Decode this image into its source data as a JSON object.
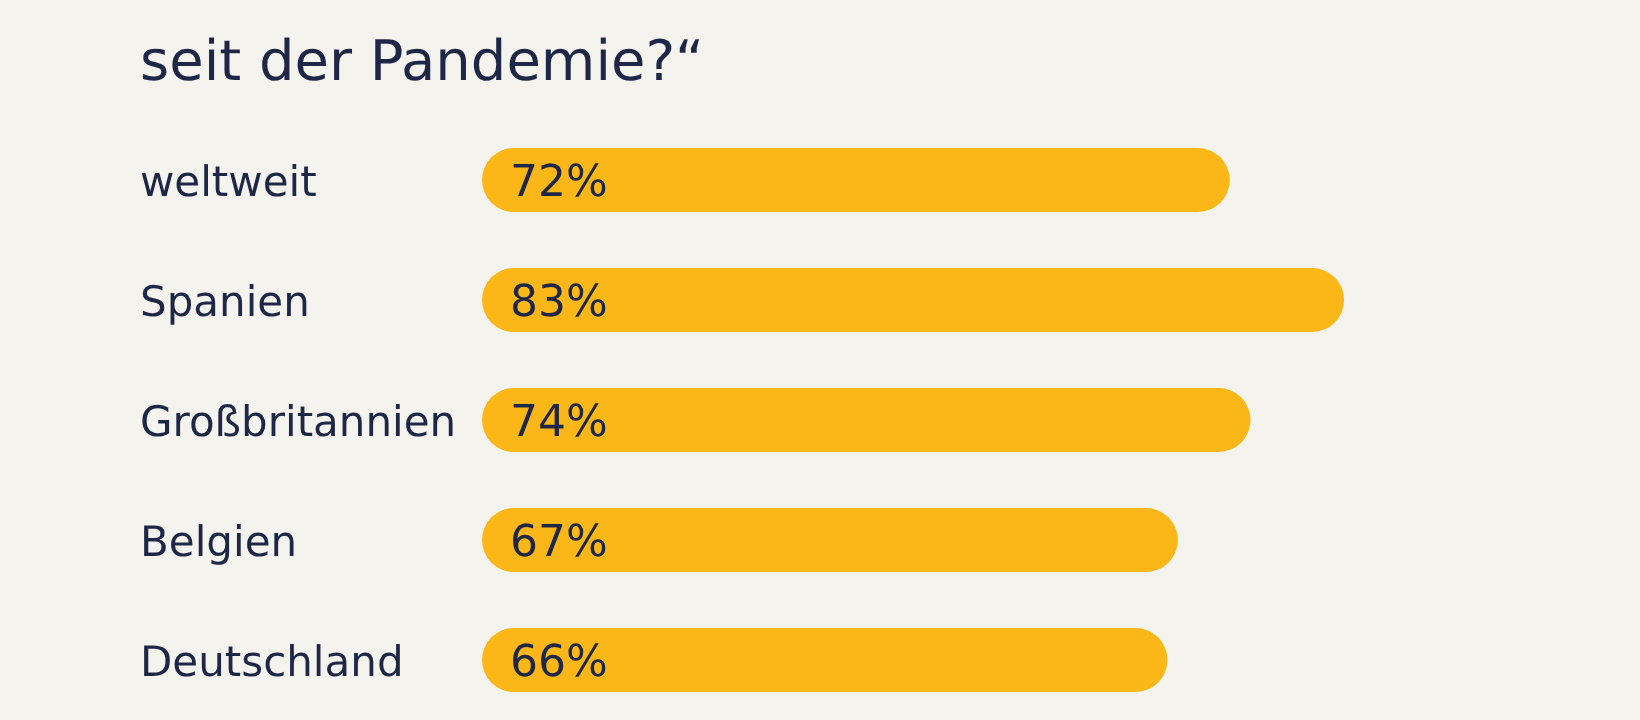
{
  "chart_data": {
    "type": "bar",
    "orientation": "horizontal",
    "title": "seit der Pandemie?“",
    "categories": [
      "weltweit",
      "Spanien",
      "Großbritannien",
      "Belgien",
      "Deutschland"
    ],
    "values": [
      72,
      83,
      74,
      67,
      66
    ],
    "value_labels": [
      "72%",
      "83%",
      "74%",
      "67%",
      "66%"
    ],
    "color": "#fbb617"
  }
}
